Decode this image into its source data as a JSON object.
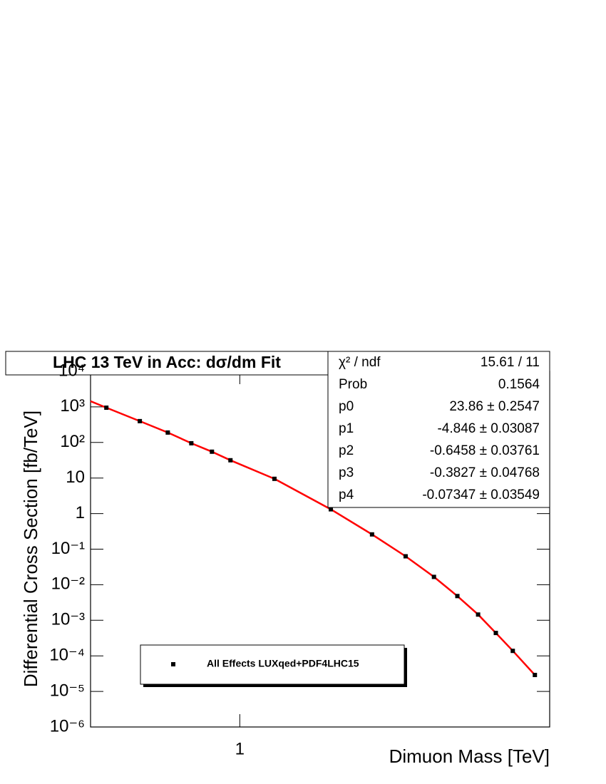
{
  "chart_data": {
    "type": "scatter",
    "title": "LHC 13 TeV in Acc: dσ/dm Fit",
    "x_label": "Dimuon Mass  [TeV]",
    "y_label": "Differential Cross Section [fb/TeV]",
    "xlog": true,
    "ylog": true,
    "xlim": [
      0.44,
      5.5
    ],
    "ylim": [
      1e-06,
      10000
    ],
    "xticks": [
      1
    ],
    "yticks": [
      {
        "value": 1e-06,
        "label": "10⁻⁶"
      },
      {
        "value": 1e-05,
        "label": "10⁻⁵"
      },
      {
        "value": 0.0001,
        "label": "10⁻⁴"
      },
      {
        "value": 0.001,
        "label": "10⁻³"
      },
      {
        "value": 0.01,
        "label": "10⁻²"
      },
      {
        "value": 0.1,
        "label": "10⁻¹"
      },
      1,
      10,
      {
        "value": 100,
        "label": "10²"
      },
      {
        "value": 1000,
        "label": "10³"
      },
      {
        "value": 10000,
        "label": "10⁴"
      }
    ],
    "series": [
      {
        "name": "All Effects LUXqed+PDF4LHC15",
        "color": "#000000",
        "x": [
          0.48,
          0.577,
          0.673,
          0.766,
          0.858,
          0.95,
          1.21,
          1.65,
          2.07,
          2.49,
          2.91,
          3.31,
          3.71,
          4.09,
          4.49,
          5.07
        ],
        "values": [
          950,
          398,
          190,
          95,
          55,
          31.6,
          9.5,
          1.32,
          0.26,
          0.063,
          0.0166,
          0.0048,
          0.00145,
          0.00044,
          0.000138,
          2.9e-05
        ]
      }
    ],
    "fit": {
      "color": "#ff0000",
      "x": [
        0.44,
        0.48,
        0.577,
        0.673,
        0.766,
        0.858,
        0.95,
        1.21,
        1.65,
        2.07,
        2.49,
        2.91,
        3.31,
        3.71,
        4.09,
        4.49,
        5.07
      ],
      "values": [
        1445,
        950,
        398,
        190,
        95,
        55,
        31.6,
        9.5,
        1.32,
        0.26,
        0.063,
        0.0166,
        0.0048,
        0.00145,
        0.00044,
        0.000138,
        2.9e-05
      ]
    },
    "stats": [
      [
        "χ² / ndf",
        "15.61 / 11"
      ],
      [
        "Prob",
        "0.1564"
      ],
      [
        "p0",
        "23.86 ± 0.2547"
      ],
      [
        "p1",
        "-4.846 ± 0.03087"
      ],
      [
        "p2",
        "-0.6458 ± 0.03761"
      ],
      [
        "p3",
        "-0.3827 ± 0.04768"
      ],
      [
        "p4",
        "-0.07347 ± 0.03549"
      ]
    ]
  }
}
